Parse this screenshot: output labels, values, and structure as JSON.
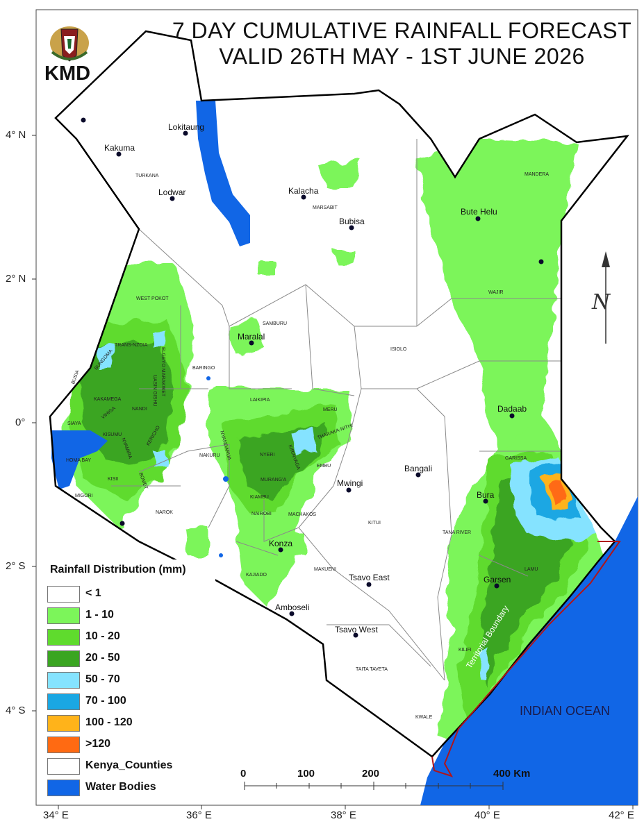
{
  "title": {
    "line1": "7 DAY CUMULATIVE RAINFALL FORECAST",
    "line2": "VALID 26TH MAY - 1ST JUNE 2026"
  },
  "logo_text": "KMD",
  "legend": {
    "title": "Rainfall Distribution (mm)",
    "items": [
      {
        "label": "< 1",
        "color": "#ffffff"
      },
      {
        "label": "1 - 10",
        "color": "#7cf55a"
      },
      {
        "label": "10 - 20",
        "color": "#5fdb2d"
      },
      {
        "label": "20 - 50",
        "color": "#3aa521"
      },
      {
        "label": "50 - 70",
        "color": "#85e3ff"
      },
      {
        "label": "70 - 100",
        "color": "#1aa7e3"
      },
      {
        "label": "100 - 120",
        "color": "#ffb31a"
      },
      {
        "label": ">120",
        "color": "#ff6a12"
      },
      {
        "label": "Kenya_Counties",
        "color": "#ffffff"
      },
      {
        "label": "Water Bodies",
        "color": "#1166e6"
      }
    ]
  },
  "axes": {
    "lon": [
      "34° E",
      "36° E",
      "38° E",
      "40° E",
      "42° E"
    ],
    "lat": [
      "4° N",
      "2° N",
      "0°",
      "2° S",
      "4° S"
    ]
  },
  "scale_bar": {
    "labels": [
      "0",
      "100",
      "200",
      "400 Km"
    ]
  },
  "north_arrow": "N",
  "ocean_label": "INDIAN OCEAN",
  "territorial_label": "Territorial Boundary",
  "cities": [
    "Lokitaung",
    "Kakuma",
    "Lodwar",
    "Kalacha",
    "Bubisa",
    "Bute Helu",
    "Maralal",
    "Dadaab",
    "Bangali",
    "Mwingi",
    "Bura",
    "Konza",
    "Tsavo East",
    "Garsen",
    "Amboseli",
    "Tsavo West"
  ],
  "counties": [
    "TURKANA",
    "MARSABIT",
    "MANDERA",
    "WAJIR",
    "WEST POKOT",
    "SAMBURU",
    "TRANS-NZOIA",
    "ISIOLO",
    "BARINGO",
    "ELGEYO MARAKWET",
    "UASIN GISHU",
    "BUNGOMA",
    "BUSIA",
    "KAKAMEGA",
    "NANDI",
    "VIHIGA",
    "LAIKIPIA",
    "MERU",
    "SIAYA",
    "KISUMU",
    "KERICHO",
    "NYANDARUA",
    "NAKURU",
    "NYERI",
    "KIRINYAGA",
    "THARAKA-NITHI",
    "EMBU",
    "GARISSA",
    "HOMA BAY",
    "NYAMIRA",
    "KISII",
    "BOMET",
    "MURANG'A",
    "MIGORI",
    "KIAMBU",
    "NAROK",
    "NAIROBI",
    "MACHAKOS",
    "KITUI",
    "TANA RIVER",
    "LAMU",
    "KAJIADO",
    "MAKUENI",
    "KILIFI",
    "TAITA TAVETA",
    "KWALE"
  ]
}
